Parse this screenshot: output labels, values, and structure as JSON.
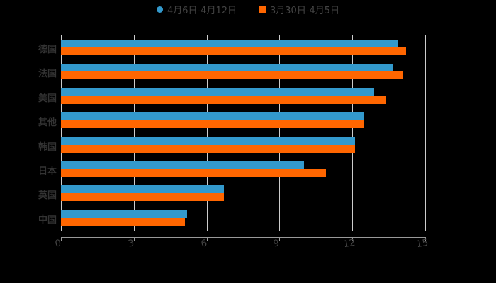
{
  "chart_data": {
    "type": "bar",
    "orientation": "horizontal",
    "title": "",
    "xlabel": "",
    "ylabel": "",
    "xlim": [
      0,
      15
    ],
    "x_ticks": [
      "0",
      "3",
      "6",
      "9",
      "12",
      "15"
    ],
    "grid": true,
    "legend_position": "top",
    "categories": [
      "德国",
      "法国",
      "美国",
      "其他",
      "韩国",
      "日本",
      "英国",
      "中国"
    ],
    "series": [
      {
        "name": "4月6日-4月12日",
        "color": "#3399cc",
        "marker": "circle",
        "values": [
          13.9,
          13.7,
          12.9,
          12.5,
          12.1,
          10.0,
          6.7,
          5.2
        ]
      },
      {
        "name": "3月30日-4月5日",
        "color": "#ff6600",
        "marker": "square",
        "values": [
          14.2,
          14.1,
          13.4,
          12.5,
          12.1,
          10.9,
          6.7,
          5.1
        ]
      }
    ]
  }
}
